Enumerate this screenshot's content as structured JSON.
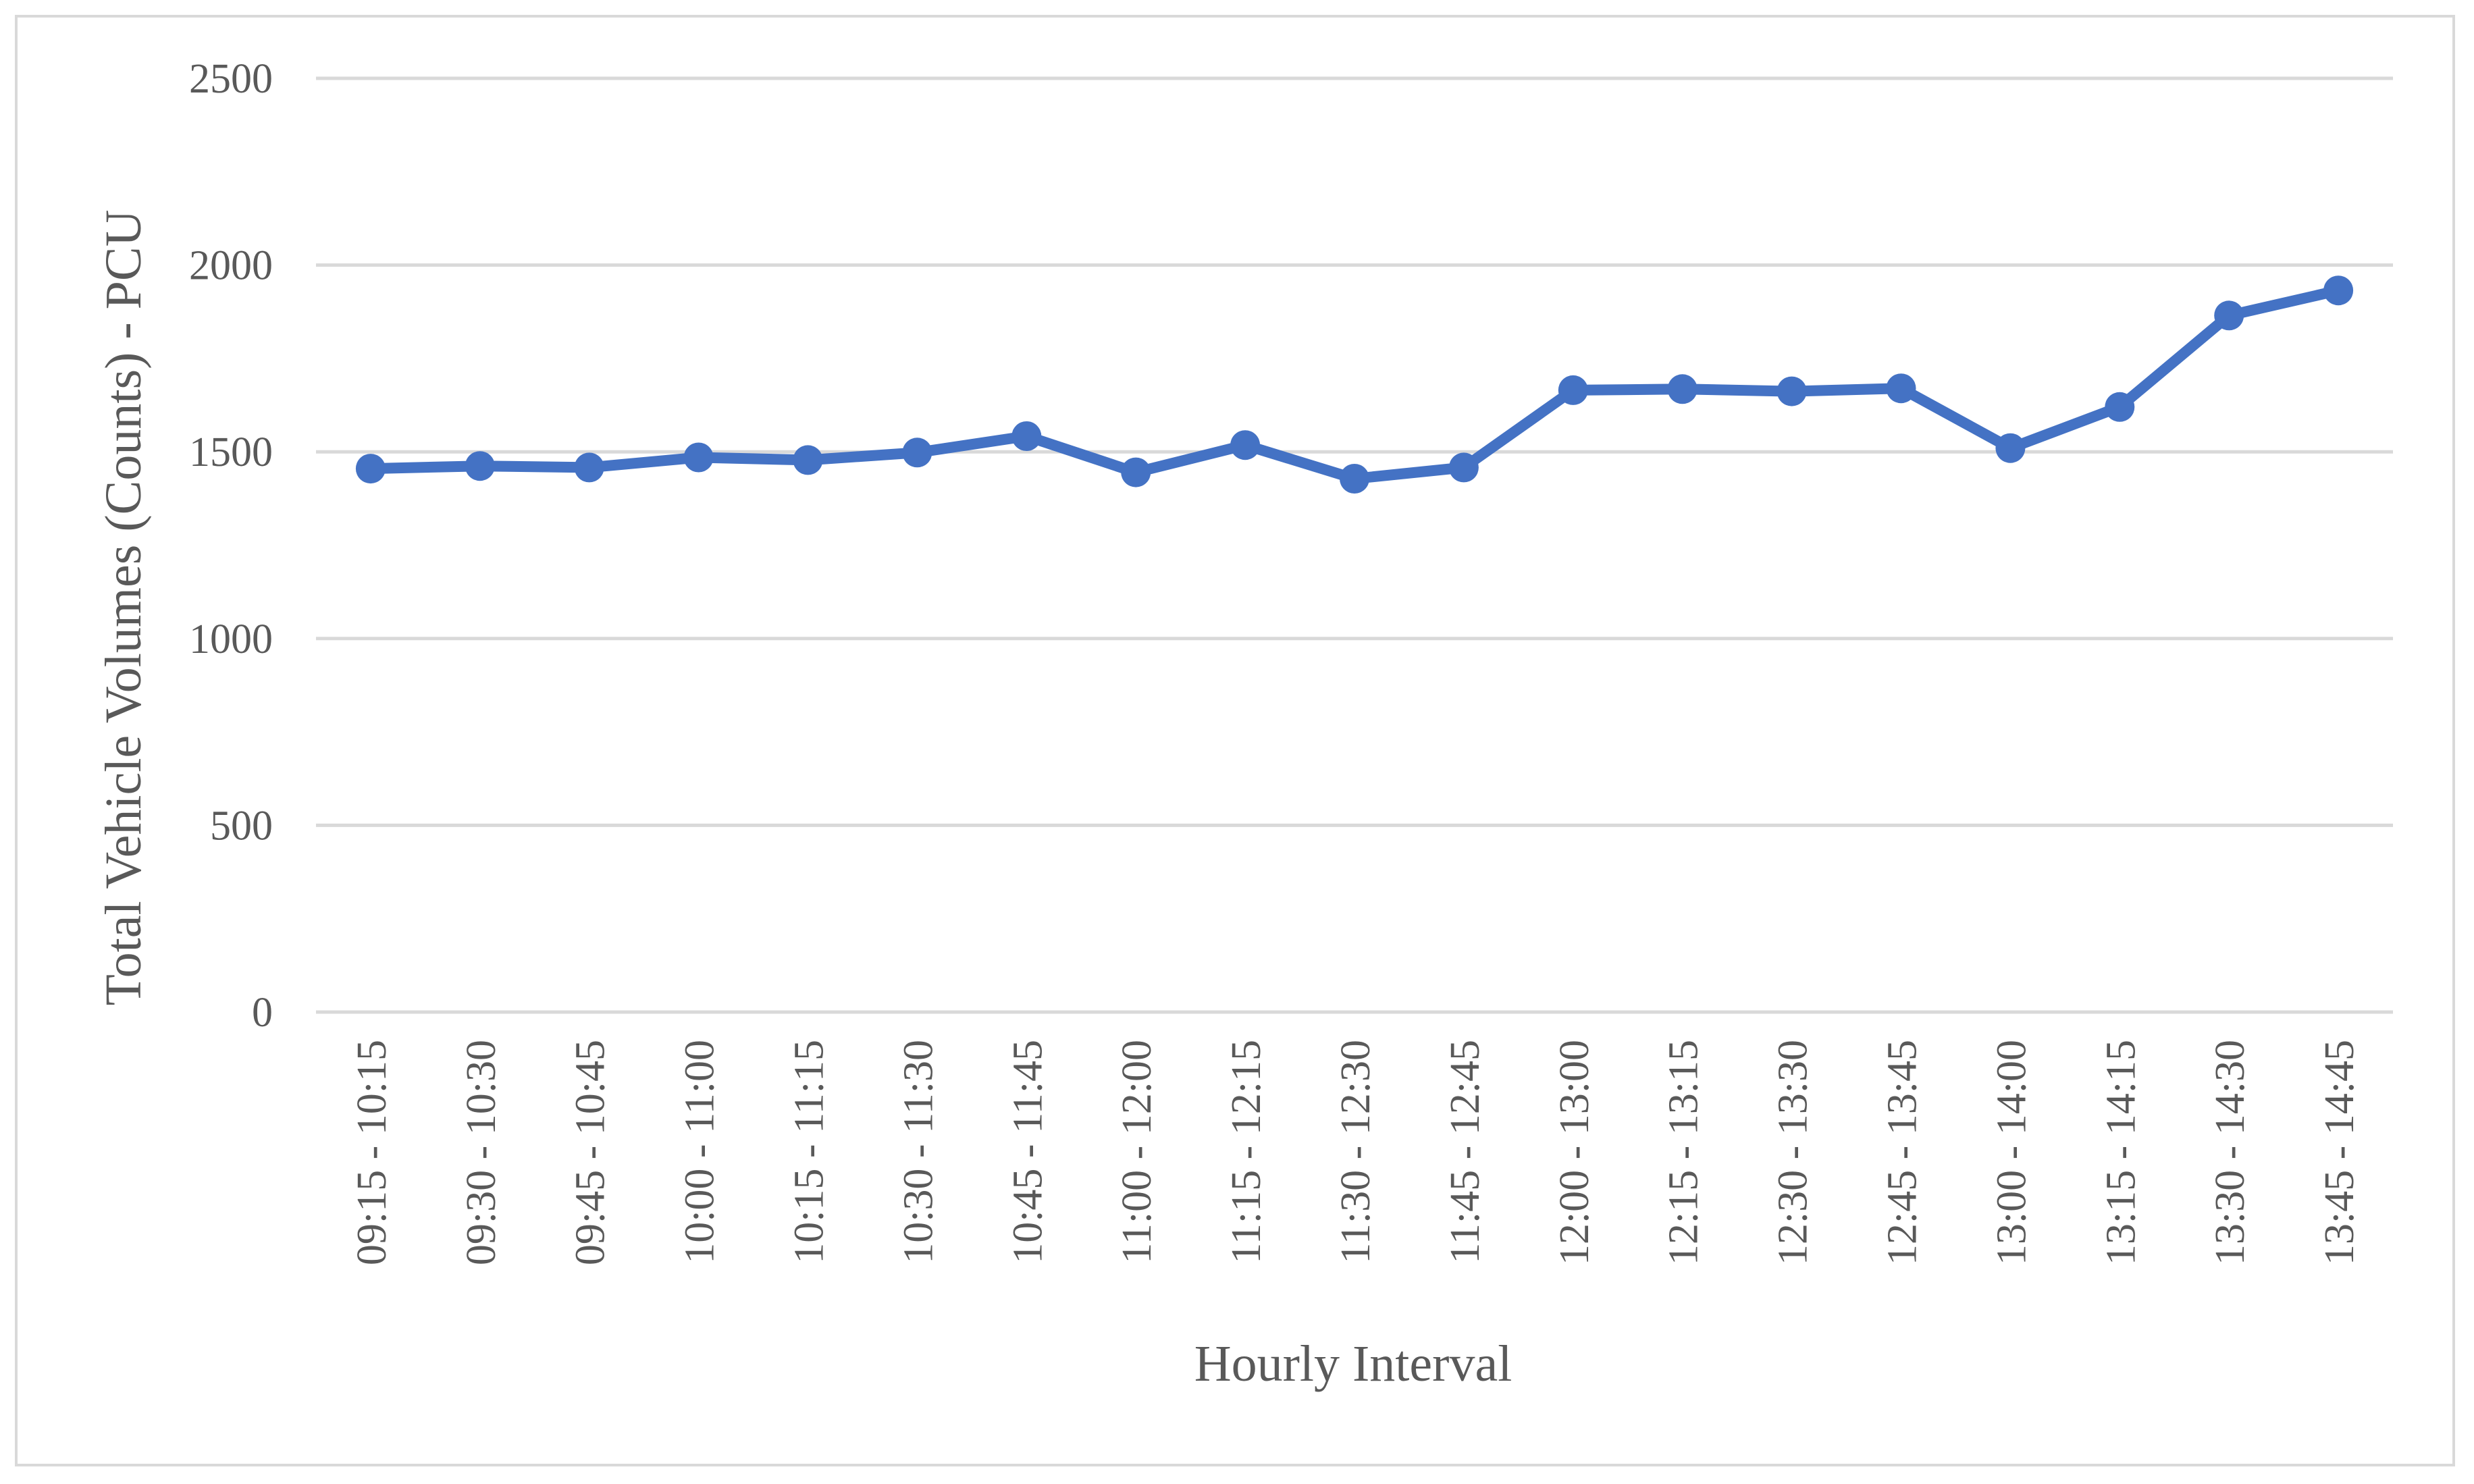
{
  "chart_data": {
    "type": "line",
    "title": "",
    "xlabel": "Hourly Interval",
    "ylabel": "Total Vehicle Volumes (Counts) - PCU",
    "ylim": [
      0,
      2500
    ],
    "yticks": [
      "0",
      "500",
      "1000",
      "1500",
      "2000",
      "2500"
    ],
    "grid": "horizontal",
    "legend": "none",
    "color": "#4472c4",
    "categories": [
      "09:15 - 10:15",
      "09:30 - 10:30",
      "09:45 - 10:45",
      "10:00 - 11:00",
      "10:15 - 11:15",
      "10:30 - 11:30",
      "10:45 - 11:45",
      "11:00 - 12:00",
      "11:15 - 12:15",
      "11:30 - 12:30",
      "11:45 - 12:45",
      "12:00 - 13:00",
      "12:15 - 13:15",
      "12:30 - 13:30",
      "12:45 - 13:45",
      "13:00 - 14:00",
      "13:15 - 14:15",
      "13:30 - 14:30",
      "13:45 - 14:45"
    ],
    "series": [
      {
        "values": [
          1455,
          1462,
          1458,
          1485,
          1478,
          1498,
          1542,
          1445,
          1518,
          1428,
          1458,
          1665,
          1668,
          1662,
          1670,
          1510,
          1620,
          1865,
          1932
        ]
      }
    ]
  }
}
